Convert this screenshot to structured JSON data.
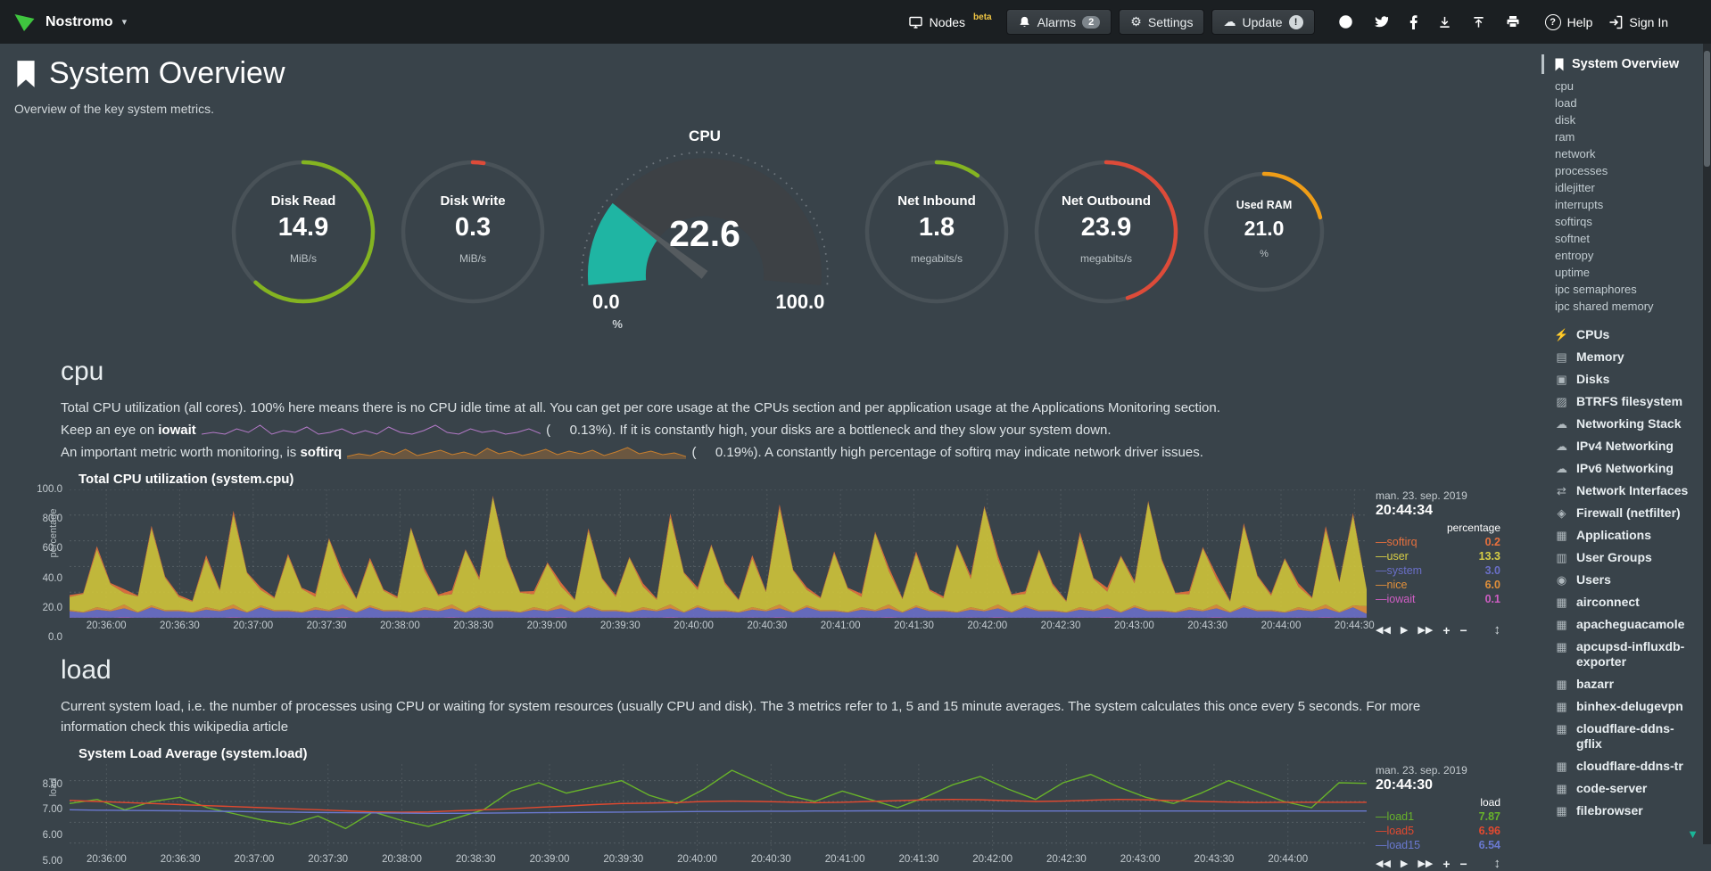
{
  "topbar": {
    "brand": "Nostromo",
    "nodes_label": "Nodes",
    "nodes_badge": "beta",
    "alarms_label": "Alarms",
    "alarms_badge": "2",
    "settings_label": "Settings",
    "update_label": "Update",
    "update_badge": "!",
    "help_label": "Help",
    "signin_label": "Sign In"
  },
  "header": {
    "title": "System Overview",
    "subtitle": "Overview of the key system metrics."
  },
  "gauges": {
    "ring_track": "#495258",
    "rings": [
      {
        "id": "disk-read",
        "title": "Disk Read",
        "value": "14.9",
        "unit": "MiB/s",
        "color": "#84b421",
        "frac": 0.62,
        "size": 164
      },
      {
        "id": "disk-write",
        "title": "Disk Write",
        "value": "0.3",
        "unit": "MiB/s",
        "color": "#dd4b39",
        "frac": 0.025,
        "size": 164
      },
      {
        "id": "net-inbound",
        "title": "Net Inbound",
        "value": "1.8",
        "unit": "megabits/s",
        "color": "#84b421",
        "frac": 0.1,
        "size": 164
      },
      {
        "id": "net-outbound",
        "title": "Net Outbound",
        "value": "23.9",
        "unit": "megabits/s",
        "color": "#dd4b39",
        "frac": 0.45,
        "size": 164
      },
      {
        "id": "used-ram",
        "title": "Used RAM",
        "value": "21.0",
        "unit": "%",
        "color": "#ef9d17",
        "frac": 0.21,
        "size": 138
      }
    ],
    "cpu": {
      "title": "CPU",
      "value": "22.6",
      "min": "0.0",
      "max": "100.0",
      "unit": "%",
      "pct": 22.6,
      "fill": "#1fb5a3",
      "track": "#3d4145"
    }
  },
  "cpu_section": {
    "heading": "cpu",
    "desc1": "Total CPU utilization (all cores). 100% here means there is no CPU idle time at all. You can get per core usage at the CPUs section and per application usage at the Applications Monitoring section.",
    "desc2_pre": "Keep an eye on ",
    "desc2_bold": "iowait",
    "desc2_mid": " (",
    "desc2_val": "0.13%",
    "desc2_post": "). If it is constantly high, your disks are a bottleneck and they slow your system down.",
    "desc3_pre": "An important metric worth monitoring, is ",
    "desc3_bold": "softirq",
    "desc3_mid": " (",
    "desc3_val": "0.19%",
    "desc3_post": "). A constantly high percentage of softirq may indicate network driver issues.",
    "iowait_spark_color": "#b57ac9",
    "iowait_spark": [
      0.1,
      0.2,
      0.1,
      0.4,
      0.2,
      0.6,
      0.1,
      0.3,
      0.2,
      0.5,
      0.1,
      0.2,
      0.4,
      0.1,
      0.3,
      0.1,
      0.5,
      0.2,
      0.1,
      0.3,
      0.6,
      0.2,
      0.1,
      0.4,
      0.2,
      0.3,
      0.1,
      0.2,
      0.4,
      0.13
    ],
    "softirq_spark_color": "#c87f2e",
    "softirq_spark": [
      0.2,
      0.5,
      0.3,
      0.8,
      0.4,
      1.0,
      0.3,
      0.6,
      0.9,
      0.4,
      0.7,
      0.3,
      1.1,
      0.5,
      0.8,
      0.3,
      0.6,
      1.0,
      0.4,
      0.8,
      0.5,
      0.9,
      0.3,
      0.7,
      1.2,
      0.5,
      0.8,
      0.4,
      0.6,
      0.19
    ]
  },
  "load_section": {
    "heading": "load",
    "desc": "Current system load, i.e. the number of processes using CPU or waiting for system resources (usually CPU and disk). The 3 metrics refer to 1, 5 and 15 minute averages. The system calculates this once every 5 seconds. For more information check this wikipedia article"
  },
  "chart_controls": {
    "backward": "◀◀",
    "play": "▶",
    "forward": "▶▶",
    "zoom_in": "+",
    "zoom_out": "−",
    "resize": "↕"
  },
  "charts": {
    "cpu": {
      "title": "Total CPU utilization (system.cpu)",
      "date": "man. 23. sep. 2019",
      "time": "20:44:34",
      "unit": "percentage",
      "axis_label": "percentage",
      "type": "stacked",
      "y_min": 0,
      "y_max": 100,
      "y_ticks": [
        0,
        20,
        40,
        60,
        80,
        100
      ],
      "y_tick_labels": [
        "0.0",
        "20.0",
        "40.0",
        "60.0",
        "80.0",
        "100.0"
      ],
      "x_offset": 15,
      "x_step": 30,
      "x_total": 530,
      "x_ticks": [
        "20:36:00",
        "20:36:30",
        "20:37:00",
        "20:37:30",
        "20:38:00",
        "20:38:30",
        "20:39:00",
        "20:39:30",
        "20:40:00",
        "20:40:30",
        "20:41:00",
        "20:41:30",
        "20:42:00",
        "20:42:30",
        "20:43:00",
        "20:43:30",
        "20:44:00",
        "20:44:30"
      ],
      "legend": [
        {
          "name": "softirq",
          "value": "0.2",
          "color": "#e8703d"
        },
        {
          "name": "user",
          "value": "13.3",
          "color": "#d8ce45"
        },
        {
          "name": "system",
          "value": "3.0",
          "color": "#6a6fc8"
        },
        {
          "name": "nice",
          "value": "6.0",
          "color": "#e2903a"
        },
        {
          "name": "iowait",
          "value": "0.1",
          "color": "#cf5ec4"
        }
      ],
      "series": [
        {
          "name": "iowait",
          "color": "#cf5ec4",
          "values": [
            0.2,
            0.1,
            0.3,
            0.1,
            0.4,
            0.1,
            0.2,
            0.1,
            0.2,
            0.1,
            0.3,
            0.1,
            0.4,
            0.1,
            0.2,
            0.1,
            0.2,
            0.1,
            0.3,
            0.1,
            0.4,
            0.1,
            0.2,
            0.1,
            0.2,
            0.1,
            0.3,
            0.1,
            0.4,
            0.1,
            0.2,
            0.1,
            0.2,
            0.1,
            0.3,
            0.1,
            0.4,
            0.1,
            0.2,
            0.1,
            0.2,
            0.1,
            0.3,
            0.1,
            0.4,
            0.1,
            0.2,
            0.1,
            0.2,
            0.1,
            0.3,
            0.1,
            0.4,
            0.1,
            0.2,
            0.1,
            0.2,
            0.1,
            0.3,
            0.1,
            0.4,
            0.1,
            0.2,
            0.1,
            0.2,
            0.1,
            0.3,
            0.1,
            0.4,
            0.1,
            0.2,
            0.1,
            0.2,
            0.1,
            0.3,
            0.1,
            0.4,
            0.1,
            0.2,
            0.1,
            0.2,
            0.1,
            0.3,
            0.1,
            0.4,
            0.1,
            0.2,
            0.1,
            0.2,
            0.1,
            0.3,
            0.1,
            0.4,
            0.1,
            0.2,
            0.1
          ]
        },
        {
          "name": "system",
          "color": "#6a6fc8",
          "values": [
            5,
            4,
            6,
            5,
            7,
            4,
            8,
            5,
            5,
            4,
            6,
            5,
            7,
            4,
            8,
            5,
            5,
            4,
            6,
            5,
            7,
            4,
            8,
            5,
            5,
            4,
            6,
            5,
            7,
            4,
            8,
            5,
            5,
            4,
            6,
            5,
            7,
            4,
            8,
            5,
            5,
            4,
            6,
            5,
            7,
            4,
            8,
            5,
            5,
            4,
            6,
            5,
            7,
            4,
            8,
            5,
            5,
            4,
            6,
            5,
            7,
            4,
            8,
            5,
            5,
            4,
            6,
            5,
            7,
            4,
            8,
            5,
            5,
            4,
            6,
            5,
            7,
            4,
            8,
            5,
            5,
            4,
            6,
            5,
            7,
            4,
            8,
            5,
            5,
            4,
            6,
            5,
            7,
            4,
            8,
            3
          ]
        },
        {
          "name": "nice",
          "color": "#e2903a",
          "values": [
            1,
            0.5,
            2,
            1,
            3,
            0.5,
            1.5,
            1,
            1,
            0.5,
            2,
            1,
            3,
            0.5,
            1.5,
            1,
            1,
            0.5,
            2,
            1,
            3,
            0.5,
            1.5,
            1,
            1,
            0.5,
            2,
            1,
            3,
            0.5,
            1.5,
            1,
            1,
            0.5,
            2,
            1,
            3,
            0.5,
            1.5,
            1,
            1,
            0.5,
            2,
            1,
            3,
            0.5,
            1.5,
            1,
            1,
            0.5,
            2,
            1,
            3,
            0.5,
            1.5,
            1,
            1,
            0.5,
            2,
            1,
            3,
            0.5,
            1.5,
            1,
            1,
            0.5,
            2,
            1,
            3,
            0.5,
            1.5,
            1,
            1,
            0.5,
            2,
            1,
            3,
            0.5,
            1.5,
            1,
            1,
            0.5,
            2,
            1,
            3,
            0.5,
            1.5,
            1,
            1,
            0.5,
            2,
            1,
            3,
            0.5,
            1.5,
            6
          ]
        },
        {
          "name": "user",
          "color": "#cfc43a",
          "values": [
            10,
            14,
            45,
            20,
            9,
            12,
            60,
            25,
            10,
            8,
            38,
            15,
            70,
            30,
            12,
            9,
            42,
            18,
            8,
            55,
            22,
            10,
            35,
            15,
            9,
            65,
            28,
            11,
            8,
            48,
            20,
            88,
            40,
            15,
            10,
            36,
            14,
            9,
            58,
            24,
            10,
            42,
            16,
            8,
            68,
            30,
            12,
            50,
            20,
            9,
            38,
            14,
            75,
            32,
            12,
            9,
            44,
            18,
            8,
            60,
            26,
            10,
            40,
            15,
            9,
            52,
            22,
            80,
            35,
            13,
            9,
            46,
            19,
            8,
            56,
            24,
            10,
            43,
            17,
            84,
            38,
            14,
            10,
            48,
            20,
            8,
            62,
            26,
            11,
            41,
            16,
            9,
            58,
            23,
            70,
            13
          ]
        },
        {
          "name": "softirq",
          "color": "#e8703d",
          "values": [
            1.5,
            0.8,
            2.5,
            1,
            3,
            0.8,
            2,
            1,
            1.5,
            0.8,
            2.5,
            1,
            3,
            0.8,
            2,
            1,
            1.5,
            0.8,
            2.5,
            1,
            3,
            0.8,
            2,
            1,
            1.5,
            0.8,
            2.5,
            1,
            3,
            0.8,
            2,
            1,
            1.5,
            0.8,
            2.5,
            1,
            3,
            0.8,
            2,
            1,
            1.5,
            0.8,
            2.5,
            1,
            3,
            0.8,
            2,
            1,
            1.5,
            0.8,
            2.5,
            1,
            3,
            0.8,
            2,
            1,
            1.5,
            0.8,
            2.5,
            1,
            3,
            0.8,
            2,
            1,
            1.5,
            0.8,
            2.5,
            1,
            3,
            0.8,
            2,
            1,
            1.5,
            0.8,
            2.5,
            1,
            3,
            0.8,
            2,
            1,
            1.5,
            0.8,
            2.5,
            1,
            3,
            0.8,
            2,
            1,
            1.5,
            0.8,
            2.5,
            1,
            3,
            0.8,
            2,
            0.2
          ]
        }
      ]
    },
    "load": {
      "title": "System Load Average (system.load)",
      "date": "man. 23. sep. 2019",
      "time": "20:44:30",
      "unit": "load",
      "axis_label": "load",
      "type": "line",
      "y_min": 4.6,
      "y_max": 8.8,
      "y_ticks": [
        5,
        6,
        7,
        8
      ],
      "y_tick_labels": [
        "5.00",
        "6.00",
        "7.00",
        "8.00"
      ],
      "x_offset": 15,
      "x_step": 30,
      "x_total": 527,
      "x_ticks": [
        "20:36:00",
        "20:36:30",
        "20:37:00",
        "20:37:30",
        "20:38:00",
        "20:38:30",
        "20:39:00",
        "20:39:30",
        "20:40:00",
        "20:40:30",
        "20:41:00",
        "20:41:30",
        "20:42:00",
        "20:42:30",
        "20:43:00",
        "20:43:30",
        "20:44:00"
      ],
      "legend": [
        {
          "name": "load1",
          "value": "7.87",
          "color": "#68b32a"
        },
        {
          "name": "load5",
          "value": "6.96",
          "color": "#e2492f"
        },
        {
          "name": "load15",
          "value": "6.54",
          "color": "#6a79d0"
        }
      ],
      "series": [
        {
          "name": "load1",
          "color": "#68b32a",
          "values": [
            6.9,
            7.1,
            6.6,
            7.0,
            7.2,
            6.7,
            6.4,
            6.1,
            5.9,
            6.3,
            5.7,
            6.5,
            6.1,
            5.8,
            6.2,
            6.6,
            7.5,
            7.9,
            7.4,
            7.7,
            8.0,
            7.3,
            6.9,
            7.6,
            8.5,
            7.9,
            7.3,
            7.0,
            7.5,
            7.1,
            6.7,
            7.2,
            7.8,
            8.2,
            7.6,
            7.1,
            7.9,
            8.3,
            7.7,
            7.2,
            6.9,
            7.4,
            8.0,
            7.5,
            7.0,
            6.7,
            7.9,
            7.87
          ]
        },
        {
          "name": "load5",
          "color": "#e2492f",
          "values": [
            7.05,
            7.0,
            6.95,
            6.9,
            6.85,
            6.8,
            6.75,
            6.7,
            6.65,
            6.6,
            6.55,
            6.5,
            6.48,
            6.5,
            6.55,
            6.6,
            6.65,
            6.72,
            6.78,
            6.85,
            6.9,
            6.92,
            6.95,
            7.0,
            7.02,
            7.0,
            6.97,
            6.94,
            6.96,
            7.0,
            7.04,
            7.08,
            7.1,
            7.08,
            7.04,
            7.0,
            7.02,
            7.06,
            7.1,
            7.08,
            7.04,
            7.0,
            6.97,
            6.95,
            6.96,
            6.96,
            6.96,
            6.96
          ]
        },
        {
          "name": "load15",
          "color": "#6a79d0",
          "values": [
            6.6,
            6.58,
            6.57,
            6.56,
            6.55,
            6.53,
            6.52,
            6.5,
            6.49,
            6.47,
            6.46,
            6.45,
            6.44,
            6.43,
            6.43,
            6.44,
            6.45,
            6.46,
            6.47,
            6.48,
            6.49,
            6.5,
            6.51,
            6.52,
            6.52,
            6.53,
            6.53,
            6.54,
            6.54,
            6.55,
            6.55,
            6.55,
            6.55,
            6.55,
            6.54,
            6.54,
            6.54,
            6.54,
            6.54,
            6.54,
            6.54,
            6.54,
            6.54,
            6.54,
            6.54,
            6.54,
            6.54,
            6.54
          ]
        }
      ]
    }
  },
  "sidebar": {
    "active": {
      "label": "System Overview"
    },
    "sub_items": [
      "cpu",
      "load",
      "disk",
      "ram",
      "network",
      "processes",
      "idlejitter",
      "interrupts",
      "softirqs",
      "softnet",
      "entropy",
      "uptime",
      "ipc semaphores",
      "ipc shared memory"
    ],
    "sections": [
      {
        "label": "CPUs",
        "glyph": "⚡",
        "icon": "bolt-icon"
      },
      {
        "label": "Memory",
        "glyph": "▤",
        "icon": "microchip-icon"
      },
      {
        "label": "Disks",
        "glyph": "▣",
        "icon": "hdd-icon"
      },
      {
        "label": "BTRFS filesystem",
        "glyph": "▨",
        "icon": "folder-icon"
      },
      {
        "label": "Networking Stack",
        "glyph": "☁",
        "icon": "cloud-icon"
      },
      {
        "label": "IPv4 Networking",
        "glyph": "☁",
        "icon": "cloud-icon"
      },
      {
        "label": "IPv6 Networking",
        "glyph": "☁",
        "icon": "cloud-icon"
      },
      {
        "label": "Network Interfaces",
        "glyph": "⇄",
        "icon": "exchange-icon"
      },
      {
        "label": "Firewall (netfilter)",
        "glyph": "◈",
        "icon": "shield-icon"
      },
      {
        "label": "Applications",
        "glyph": "▦",
        "icon": "apps-grid-icon"
      },
      {
        "label": "User Groups",
        "glyph": "▥",
        "icon": "users-group-icon"
      },
      {
        "label": "Users",
        "glyph": "◉",
        "icon": "user-icon"
      },
      {
        "label": "airconnect",
        "glyph": "▦",
        "icon": "cubes-icon"
      },
      {
        "label": "apacheguacamole",
        "glyph": "▦",
        "icon": "cubes-icon"
      },
      {
        "label": "apcupsd-influxdb-exporter",
        "glyph": "▦",
        "icon": "cubes-icon"
      },
      {
        "label": "bazarr",
        "glyph": "▦",
        "icon": "cubes-icon"
      },
      {
        "label": "binhex-delugevpn",
        "glyph": "▦",
        "icon": "cubes-icon"
      },
      {
        "label": "cloudflare-ddns-gflix",
        "glyph": "▦",
        "icon": "cubes-icon"
      },
      {
        "label": "cloudflare-ddns-tr",
        "glyph": "▦",
        "icon": "cubes-icon"
      },
      {
        "label": "code-server",
        "glyph": "▦",
        "icon": "cubes-icon"
      },
      {
        "label": "filebrowser",
        "glyph": "▦",
        "icon": "cubes-icon"
      }
    ]
  }
}
